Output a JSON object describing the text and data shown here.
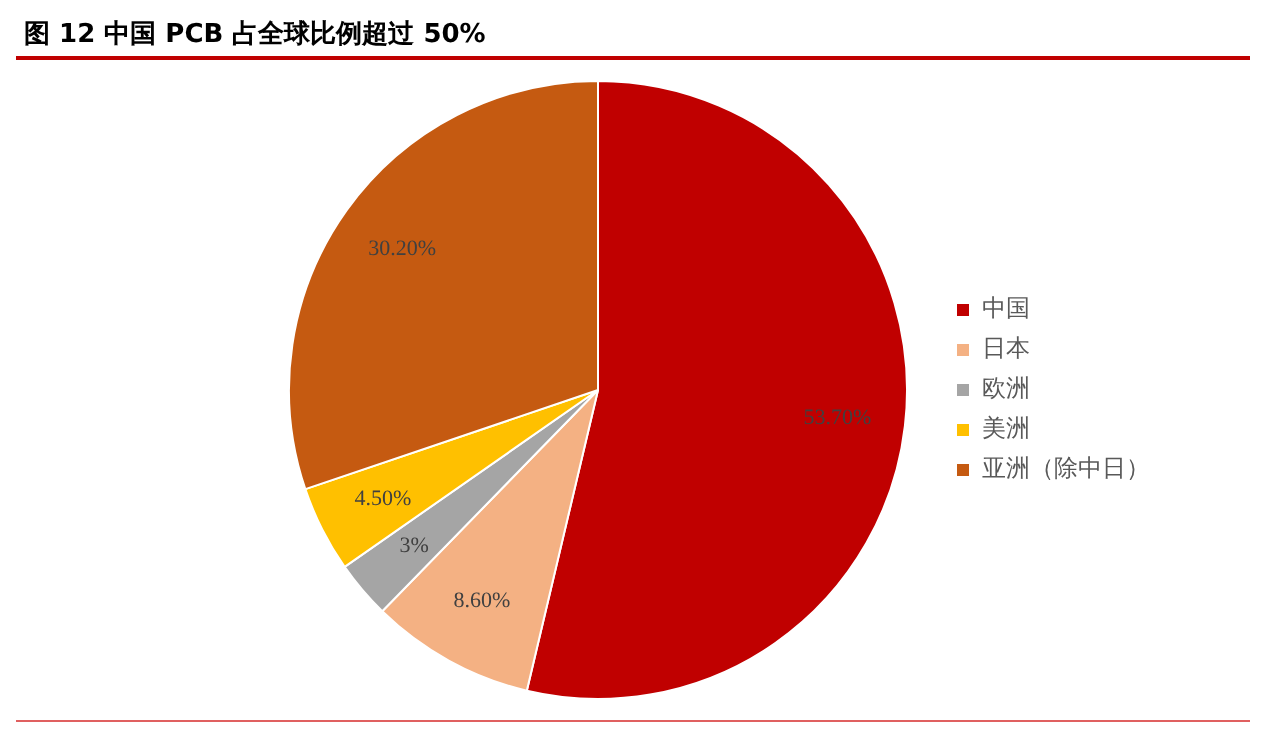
{
  "chart_data": {
    "type": "pie",
    "title": "图 12 中国 PCB 占全球比例超过 50%",
    "categories": [
      "中国",
      "日本",
      "欧洲",
      "美洲",
      "亚洲（除中日）"
    ],
    "values": [
      53.7,
      8.6,
      3,
      4.5,
      30.2
    ],
    "colors": [
      "#c00000",
      "#f4b183",
      "#a5a5a5",
      "#ffc000",
      "#c55a11"
    ],
    "value_labels": [
      "53.70%",
      "8.60%",
      "3%",
      "4.50%",
      "30.20%"
    ],
    "legend": "right"
  }
}
